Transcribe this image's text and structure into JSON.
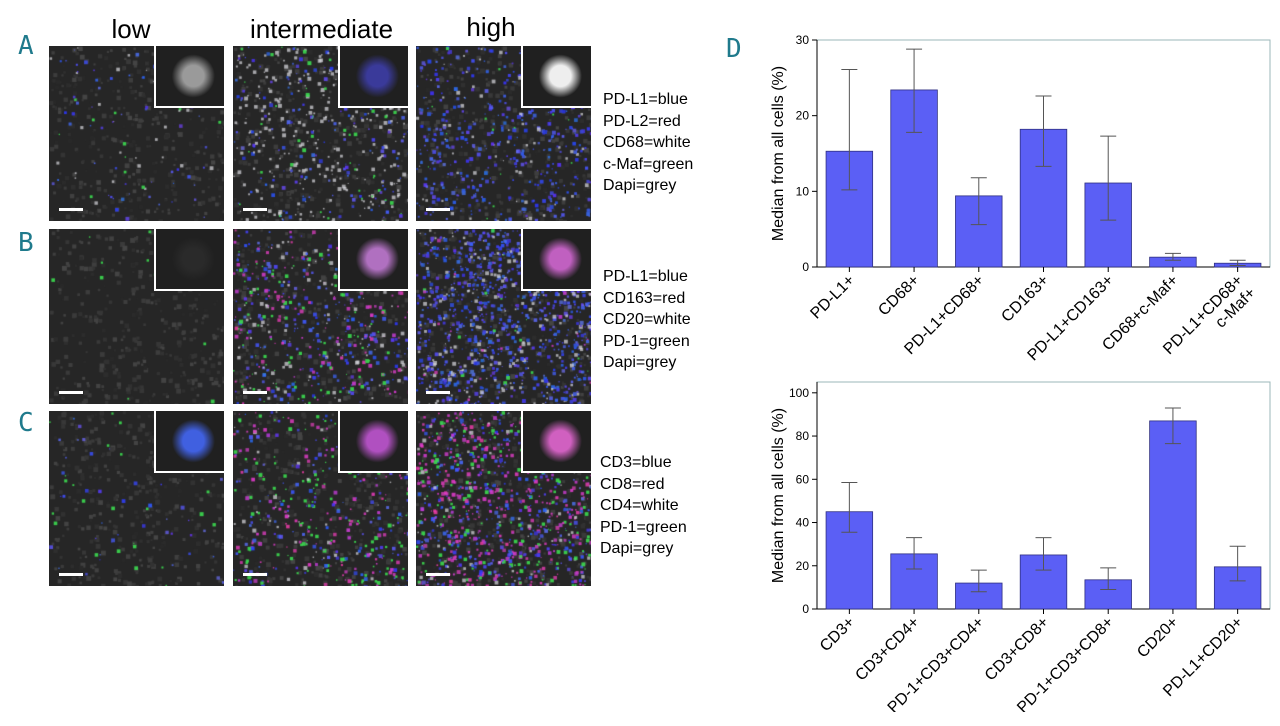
{
  "columns": [
    "low",
    "intermediate",
    "high"
  ],
  "rows": [
    {
      "letter": "A",
      "legend": [
        "PD-L1=blue",
        "PD-L2=red",
        "CD68=white",
        "c-Maf=green",
        "Dapi=grey"
      ]
    },
    {
      "letter": "B",
      "legend": [
        "PD-L1=blue",
        "CD163=red",
        "CD20=white",
        "PD-1=green",
        "Dapi=grey"
      ]
    },
    {
      "letter": "C",
      "legend": [
        "CD3=blue",
        "CD8=red",
        "CD4=white",
        "PD-1=green",
        "Dapi=grey"
      ]
    }
  ],
  "panel_d_letter": "D",
  "colors": {
    "bar": "#5b5ff5",
    "bar_edge": "#2f2f80",
    "letter": "#1f7a8c",
    "axis_frame": "#9bb7ba"
  },
  "chart_data": [
    {
      "type": "bar",
      "categories": [
        "PD-L1+",
        "CD68+",
        "PD-L1+CD68+",
        "CD163+",
        "PD-L1+CD163+",
        "CD68+c-Maf+",
        "PD-L1+CD68+\nc-Maf+"
      ],
      "values": [
        15.3,
        23.4,
        9.4,
        18.2,
        11.1,
        1.3,
        0.5
      ],
      "error_low": [
        10.2,
        17.8,
        5.6,
        13.3,
        6.2,
        0.9,
        0.2
      ],
      "error_high": [
        26.1,
        28.8,
        11.8,
        22.6,
        17.3,
        1.8,
        0.9
      ],
      "ylabel": "Median from all cells (%)",
      "ylim": [
        0,
        30
      ],
      "yticks": [
        0,
        10,
        20,
        30
      ]
    },
    {
      "type": "bar",
      "categories": [
        "CD3+",
        "CD3+CD4+",
        "PD-1+CD3+CD4+",
        "CD3+CD8+",
        "PD-1+CD3+CD8+",
        "CD20+",
        "PD-L1+CD20+"
      ],
      "values": [
        45,
        25.5,
        12,
        25,
        13.5,
        87,
        19.5
      ],
      "error_low": [
        35.5,
        18.5,
        8,
        18,
        9,
        76.5,
        13
      ],
      "error_high": [
        58.5,
        33,
        18,
        33,
        19,
        93,
        29
      ],
      "ylabel": "Median from all cells (%)",
      "ylim": [
        0,
        105
      ],
      "yticks": [
        0,
        20,
        40,
        60,
        80,
        100
      ]
    }
  ]
}
